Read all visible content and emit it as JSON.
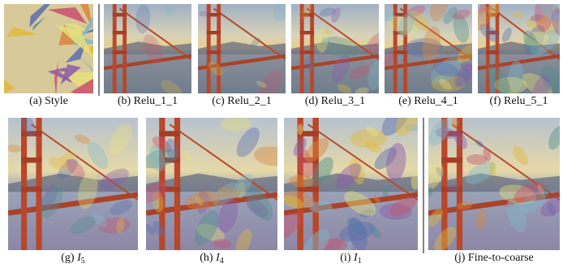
{
  "panels": [
    {
      "caption": "(a) Style"
    },
    {
      "caption": "(b) Relu_1_1"
    },
    {
      "caption": "(c) Relu_2_1"
    },
    {
      "caption": "(d) Relu_3_1"
    },
    {
      "caption": "(e) Relu_4_1"
    },
    {
      "caption": "(f) Relu_5_1"
    },
    {
      "caption_prefix": "(g)",
      "caption_symbol": "I",
      "caption_subscript": "5"
    },
    {
      "caption_prefix": "(h)",
      "caption_symbol": "I",
      "caption_subscript": "4"
    },
    {
      "caption_prefix": "(i)",
      "caption_symbol": "I",
      "caption_subscript": "1"
    },
    {
      "caption": "(j) Fine-to-coarse"
    }
  ]
}
